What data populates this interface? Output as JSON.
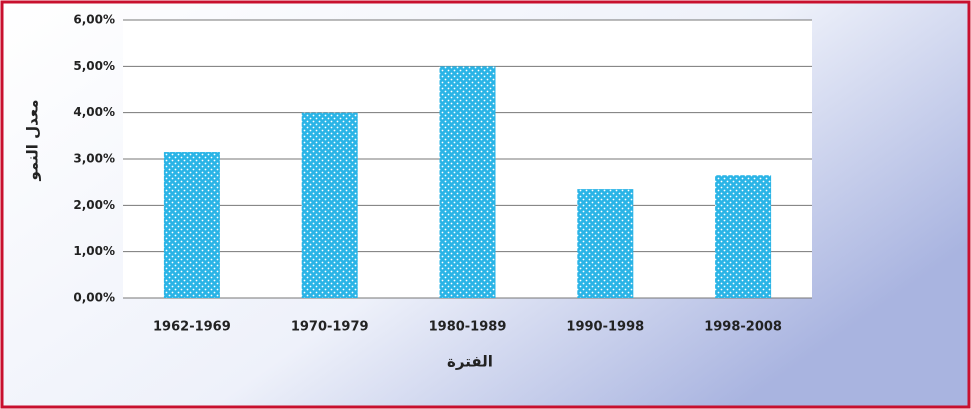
{
  "chart_data": {
    "type": "bar",
    "x_label": "الفترة",
    "y_label": "معدل النمو",
    "categories": [
      "1962-1969",
      "1970-1979",
      "1980-1989",
      "1990-1998",
      "1998-2008"
    ],
    "values": [
      3.15,
      4.0,
      5.0,
      2.35,
      2.65
    ],
    "color": "#2ab4e6",
    "ylim": [
      0,
      6
    ],
    "yticks": [
      {
        "value": 0,
        "label": "0,00%"
      },
      {
        "value": 1,
        "label": "1,00%"
      },
      {
        "value": 2,
        "label": "2,00%"
      },
      {
        "value": 3,
        "label": "3,00%"
      },
      {
        "value": 4,
        "label": "4,00%"
      },
      {
        "value": 5,
        "label": "5,00%"
      },
      {
        "value": 6,
        "label": "6,00%"
      }
    ],
    "grid": true
  }
}
